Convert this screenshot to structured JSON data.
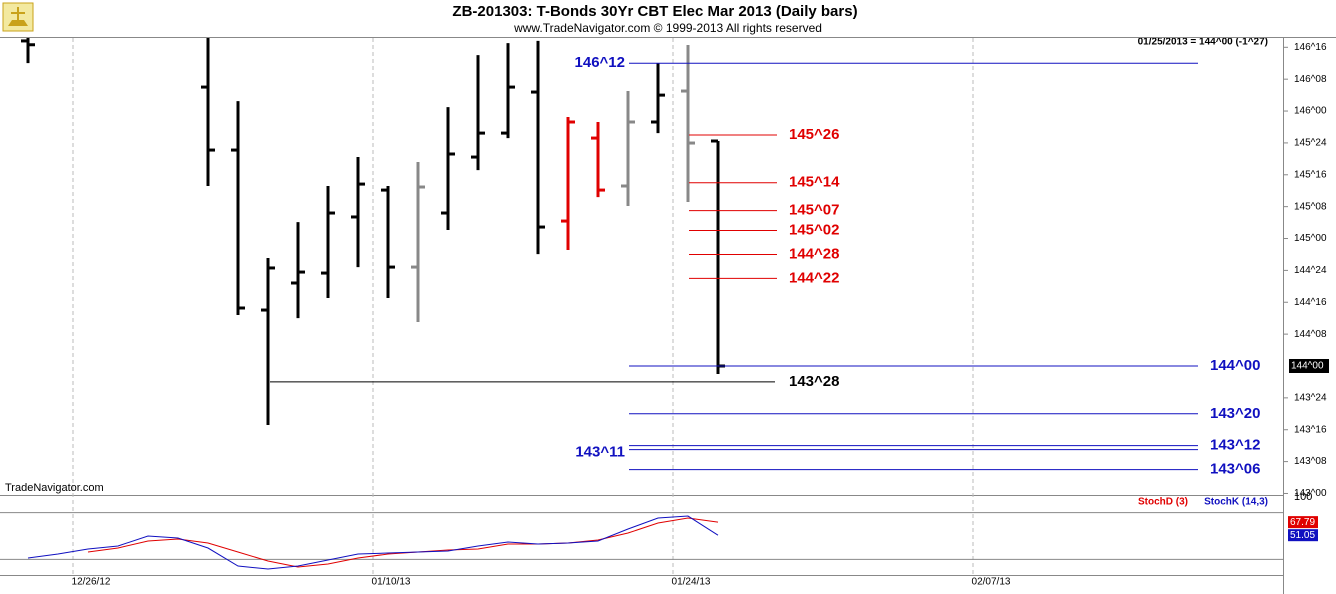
{
  "header": {
    "title": "ZB-201303:  T-Bonds 30Yr CBT Elec Mar 2013  (Daily bars)",
    "subtitle": "www.TradeNavigator.com © 1999-2013 All rights reserved",
    "quote": "01/25/2013 = 144^00 (-1^27)",
    "brand": "TradeNavigator.com"
  },
  "chart_data": [
    {
      "type": "ohlc",
      "categories": [
        null,
        null,
        "12/26/12",
        null,
        null,
        null,
        null,
        null,
        null,
        null,
        null,
        null,
        "01/10/13",
        null,
        null,
        null,
        null,
        null,
        null,
        null,
        null,
        null,
        "01/24/13",
        null,
        null,
        null,
        null,
        null,
        null,
        null,
        null,
        null,
        "02/07/13",
        null,
        null,
        null,
        null,
        null,
        null,
        null,
        null,
        null
      ],
      "open": [
        146.55,
        null,
        null,
        null,
        null,
        null,
        146.188,
        145.694,
        144.439,
        144.651,
        144.729,
        145.169,
        145.38,
        144.776,
        145.2,
        145.639,
        145.827,
        146.149,
        145.137,
        145.788,
        145.412,
        145.914,
        146.157,
        145.765,
        null,
        null,
        null,
        null,
        null,
        null,
        null,
        null,
        null,
        null,
        null,
        null,
        null,
        null,
        null,
        null,
        null,
        null
      ],
      "high": [
        146.6,
        null,
        null,
        null,
        null,
        null,
        146.6,
        146.078,
        144.847,
        145.129,
        145.412,
        145.639,
        145.412,
        145.6,
        146.031,
        146.439,
        146.533,
        146.55,
        145.953,
        145.914,
        146.157,
        146.376,
        146.518,
        145.765,
        null,
        null,
        null,
        null,
        null,
        null,
        null,
        null,
        null,
        null,
        null,
        null,
        null,
        null,
        null,
        null,
        null,
        null
      ],
      "low": [
        146.376,
        null,
        null,
        null,
        null,
        null,
        145.412,
        144.4,
        143.537,
        144.376,
        144.533,
        144.776,
        144.533,
        144.345,
        145.067,
        145.537,
        145.788,
        144.878,
        144.91,
        145.325,
        145.255,
        145.827,
        145.286,
        143.937,
        null,
        null,
        null,
        null,
        null,
        null,
        null,
        null,
        null,
        null,
        null,
        null,
        null,
        null,
        null,
        null,
        null,
        null
      ],
      "close": [
        146.52,
        null,
        null,
        null,
        null,
        null,
        145.694,
        144.455,
        144.769,
        144.737,
        145.2,
        145.427,
        144.776,
        145.404,
        145.663,
        145.827,
        146.188,
        145.09,
        145.914,
        145.38,
        145.914,
        146.125,
        145.749,
        144.0,
        null,
        null,
        null,
        null,
        null,
        null,
        null,
        null,
        null,
        null,
        null,
        null,
        null,
        null,
        null,
        null,
        null,
        null
      ],
      "bar_colors": [
        "#000000",
        null,
        null,
        null,
        null,
        null,
        "#000000",
        "#000000",
        "#000000",
        "#000000",
        "#000000",
        "#000000",
        "#000000",
        "#888888",
        "#000000",
        "#000000",
        "#000000",
        "#000000",
        "#e00000",
        "#e00000",
        "#888888",
        "#000000",
        "#888888",
        "#000000",
        null,
        null,
        null,
        null,
        null,
        null,
        null,
        null,
        null,
        null,
        null,
        null,
        null,
        null,
        null,
        null,
        null,
        null
      ],
      "ylim": [
        142.988,
        146.573
      ],
      "yticks": [
        {
          "value": 146.5,
          "label": "146^16"
        },
        {
          "value": 146.25,
          "label": "146^08"
        },
        {
          "value": 146.0,
          "label": "146^00"
        },
        {
          "value": 145.75,
          "label": "145^24"
        },
        {
          "value": 145.5,
          "label": "145^16"
        },
        {
          "value": 145.25,
          "label": "145^08"
        },
        {
          "value": 145.0,
          "label": "145^00"
        },
        {
          "value": 144.75,
          "label": "144^24"
        },
        {
          "value": 144.5,
          "label": "144^16"
        },
        {
          "value": 144.25,
          "label": "144^08"
        },
        {
          "value": 143.75,
          "label": "143^24"
        },
        {
          "value": 143.5,
          "label": "143^16"
        },
        {
          "value": 143.25,
          "label": "143^08"
        },
        {
          "value": 143.0,
          "label": "143^00"
        }
      ],
      "last_price": {
        "value": 144.0,
        "label": "144^00"
      },
      "levels": [
        {
          "value": 146.375,
          "label": "146^12",
          "color": "#1010c0"
        },
        {
          "value": 145.8125,
          "label": "145^26",
          "color": "#e00000"
        },
        {
          "value": 145.4375,
          "label": "145^14",
          "color": "#e00000"
        },
        {
          "value": 145.21875,
          "label": "145^07",
          "color": "#e00000"
        },
        {
          "value": 145.0625,
          "label": "145^02",
          "color": "#e00000"
        },
        {
          "value": 144.875,
          "label": "144^28",
          "color": "#e00000"
        },
        {
          "value": 144.6875,
          "label": "144^22",
          "color": "#e00000"
        },
        {
          "value": 144.0,
          "label": "144^00",
          "color": "#1010c0"
        },
        {
          "value": 143.875,
          "label": "143^28",
          "color": "#000000"
        },
        {
          "value": 143.625,
          "label": "143^20",
          "color": "#1010c0"
        },
        {
          "value": 143.375,
          "label": "143^12",
          "color": "#1010c0"
        },
        {
          "value": 143.34375,
          "label": "143^11",
          "color": "#1010c0"
        },
        {
          "value": 143.1875,
          "label": "143^06",
          "color": "#1010c0"
        }
      ]
    },
    {
      "type": "line",
      "ylim": [
        0,
        100
      ],
      "yticks": [
        100
      ],
      "guide_lines": [
        80,
        20
      ],
      "series": [
        {
          "name": "StochD (3)",
          "color": "#e00000",
          "values": [
            null,
            null,
            29.5,
            34.6,
            43.6,
            46.2,
            41,
            29.5,
            17.9,
            10.3,
            14.1,
            21.8,
            26.9,
            29.5,
            32.1,
            33.3,
            39.7,
            39.7,
            41,
            44.9,
            53.8,
            66.7,
            73.1,
            67.79,
            null,
            null,
            null,
            null,
            null,
            null,
            null,
            null,
            null,
            null,
            null,
            null,
            null,
            null,
            null,
            null,
            null,
            null
          ]
        },
        {
          "name": "StochK (14,3)",
          "color": "#1010c0",
          "values": [
            21.8,
            26.9,
            33.3,
            37.2,
            50,
            47.4,
            34.6,
            11.5,
            7.7,
            11.5,
            19.2,
            26.9,
            28.2,
            29.5,
            30.8,
            37.2,
            42.3,
            39.7,
            41,
            43.6,
            59,
            73.1,
            75.6,
            51.05,
            null,
            null,
            null,
            null,
            null,
            null,
            null,
            null,
            null,
            null,
            null,
            null,
            null,
            null,
            null,
            null,
            null,
            null
          ]
        }
      ]
    }
  ]
}
